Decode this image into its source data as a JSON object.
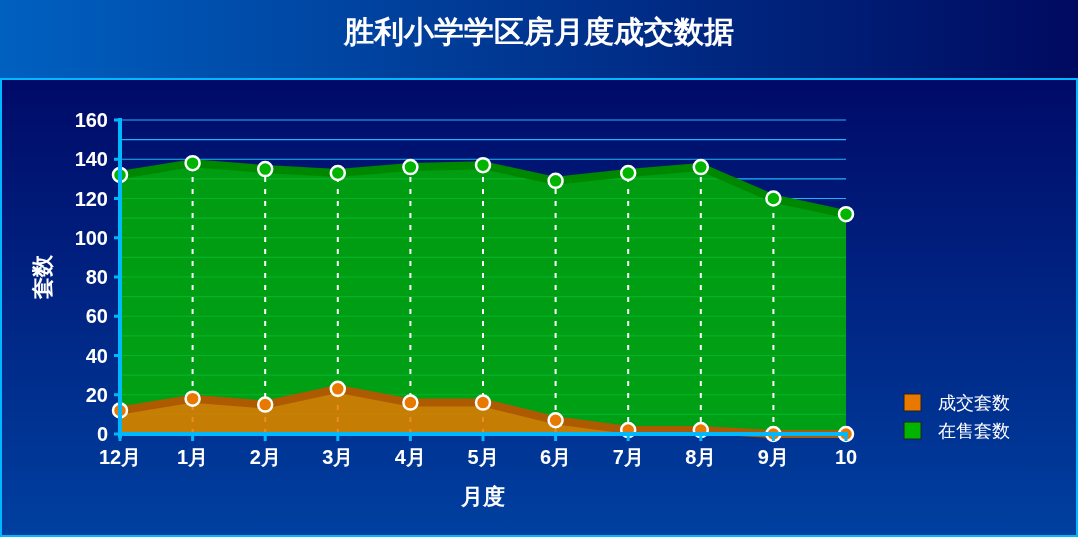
{
  "chart_data": {
    "type": "area",
    "title": "胜利小学学区房月度成交数据",
    "xlabel": "月度",
    "ylabel": "套数",
    "categories": [
      "12月",
      "1月",
      "2月",
      "3月",
      "4月",
      "5月",
      "6月",
      "7月",
      "8月",
      "9月",
      "10"
    ],
    "series": [
      {
        "name": "在售套数",
        "color": "#00b400",
        "values": [
          132,
          138,
          135,
          133,
          136,
          137,
          129,
          133,
          136,
          120,
          112
        ]
      },
      {
        "name": "成交套数",
        "color": "#e87800",
        "values": [
          12,
          18,
          15,
          23,
          16,
          16,
          7,
          2,
          2,
          0,
          0
        ]
      }
    ],
    "ylim": [
      0,
      160
    ],
    "yticks": [
      0,
      {
        "value": 10,
        "label": null
      },
      20,
      {
        "value": 30,
        "label": null
      },
      40,
      {
        "value": 50,
        "label": null
      },
      60,
      {
        "value": 70,
        "label": null
      },
      80,
      {
        "value": 90,
        "label": null
      },
      100,
      {
        "value": 110,
        "label": null
      },
      120,
      {
        "value": 130,
        "label": null
      },
      140,
      {
        "value": 150,
        "label": null
      },
      160
    ],
    "grid": true,
    "legend": "right",
    "marker": "circle"
  }
}
